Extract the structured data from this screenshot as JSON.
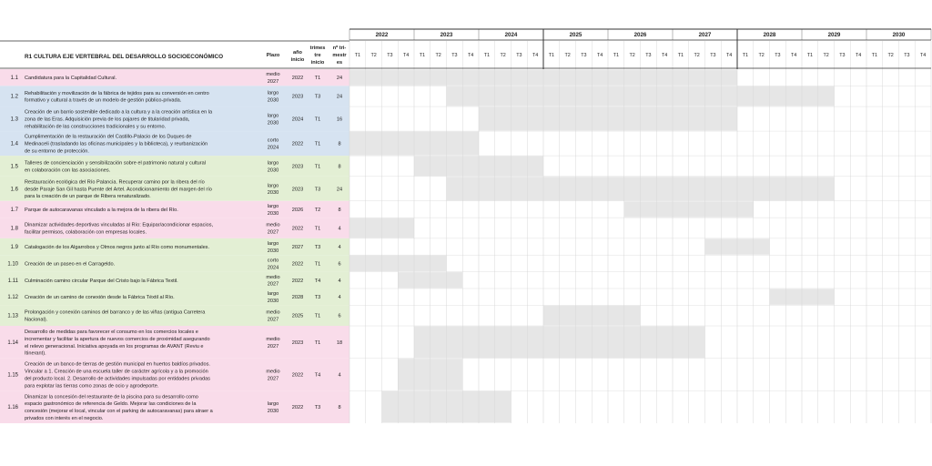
{
  "header": {
    "title": "R1 CULTURA EJE VERTEBRAL DEL DESARROLLO SOCIOECONÓMICO",
    "plazo": "Plazo",
    "anio": [
      "año",
      "inicio"
    ],
    "trimestre": [
      "trimes",
      "tre",
      "inicio"
    ],
    "ntrim": [
      "nº tri-",
      "mestr",
      "es"
    ]
  },
  "years": [
    "2022",
    "2023",
    "2024",
    "2025",
    "2026",
    "2027",
    "2028",
    "2029",
    "2030"
  ],
  "quarters": [
    "T1",
    "T2",
    "T3",
    "T4"
  ],
  "colors": {
    "pink": "#f9dcea",
    "blue": "#d6e3f1",
    "green": "#e3efd4",
    "bar": "#e6e6e6",
    "grid": "#d8d8d8",
    "border": "#333333"
  },
  "rows": [
    {
      "id": "1.1",
      "color": "pink",
      "desc": [
        "Candidatura para la Capitalidad Cultural."
      ],
      "plazo": [
        "medio",
        "2027"
      ],
      "anio": "2022",
      "trim": "T1",
      "n": "24"
    },
    {
      "id": "1.2",
      "color": "blue",
      "desc": [
        "Rehabilitación y movilización de la fábrica de tejidos para su conversión en centro",
        "formativo y cultural a través de un modelo de gestión público-privada."
      ],
      "plazo": [
        "largo",
        "2030"
      ],
      "anio": "2023",
      "trim": "T3",
      "n": "24"
    },
    {
      "id": "1.3",
      "color": "blue",
      "desc": [
        "Creación de un barrio sostenible dedicado a la cultura y a la creación artística en la",
        "zona de las Eras. Adquisición previa de los pajares de titularidad privada,",
        "rehabilitación de las construcciones tradicionales y su entorno."
      ],
      "plazo": [
        "largo",
        "2030"
      ],
      "anio": "2024",
      "trim": "T1",
      "n": "16"
    },
    {
      "id": "1.4",
      "color": "blue",
      "desc": [
        "Cumplimentación de la restauración del Castillo-Palacio de los Duques de",
        "Medinaceli (trasladando las oficinas municipales y la biblioteca), y reurbanización",
        "de su entorno de protección."
      ],
      "plazo": [
        "corto",
        "2024"
      ],
      "anio": "2022",
      "trim": "T1",
      "n": "8"
    },
    {
      "id": "1.5",
      "color": "green",
      "desc": [
        "Talleres de concienciación y sensibilización sobre el patrimonio natural y cultural",
        "en colaboración con las asociaciones."
      ],
      "plazo": [
        "largo",
        "2030"
      ],
      "anio": "2023",
      "trim": "T1",
      "n": "8"
    },
    {
      "id": "1.6",
      "color": "green",
      "desc": [
        "Restauración ecológica del Río Palancia. Recuperar camino por la ribera del río",
        "desde Paraje San Gil hasta Puente del Artel. Acondicionamiento del margen del río",
        "para la creación de un parque de Ribera renaturalizado."
      ],
      "plazo": [
        "largo",
        "2030"
      ],
      "anio": "2023",
      "trim": "T3",
      "n": "24"
    },
    {
      "id": "1.7",
      "color": "pink",
      "desc": [
        "Parque de autocaravanas vinculado a la mejora de la ribera del Río."
      ],
      "plazo": [
        "largo",
        "2030"
      ],
      "anio": "2026",
      "trim": "T2",
      "n": "8"
    },
    {
      "id": "1.8",
      "color": "pink",
      "desc": [
        "Dinamizar actividades deportivas vinculadas al Río: Equipar/acondicionar espacios,",
        "facilitar permisos, colaboración con empresas locales."
      ],
      "plazo": [
        "medio",
        "2027"
      ],
      "anio": "2022",
      "trim": "T1",
      "n": "4"
    },
    {
      "id": "1.9",
      "color": "green",
      "desc": [
        "Catalogación de los Algarrobos y Olmos negros junto al Río como monumentales."
      ],
      "plazo": [
        "largo",
        "2030"
      ],
      "anio": "2027",
      "trim": "T3",
      "n": "4"
    },
    {
      "id": "1.10",
      "color": "green",
      "desc": [
        "Creación de un paseo en el Carrageldo."
      ],
      "plazo": [
        "corto",
        "2024"
      ],
      "anio": "2022",
      "trim": "T1",
      "n": "6"
    },
    {
      "id": "1.11",
      "color": "green",
      "desc": [
        "Culminación camino circular Parque del Cristo bajo la Fábrica Textil."
      ],
      "plazo": [
        "medio",
        "2027"
      ],
      "anio": "2022",
      "trim": "T4",
      "n": "4"
    },
    {
      "id": "1.12",
      "color": "green",
      "desc": [
        "Creación de un camino de conexión desde la Fábrica Téxtil al Río."
      ],
      "plazo": [
        "largo",
        "2030"
      ],
      "anio": "2028",
      "trim": "T3",
      "n": "4"
    },
    {
      "id": "1.13",
      "color": "green",
      "desc": [
        "Prolongación y conexión caminos del barranco y de las viñas (antigua Carretera",
        "Nacional)."
      ],
      "plazo": [
        "medio",
        "2027"
      ],
      "anio": "2025",
      "trim": "T1",
      "n": "6"
    },
    {
      "id": "1.14",
      "color": "pink",
      "desc": [
        "Desarrollo de medidas para favorecer el consumo en los comercios locales e",
        "incrementar y facilitar la apertura de nuevos comercios de proximidad asegurando",
        "el relevo generacional. Iniciativa apoyada en los programas de AVANT (Reviu e",
        "Itinerant)."
      ],
      "plazo": [
        "medio",
        "2027"
      ],
      "anio": "2023",
      "trim": "T1",
      "n": "18"
    },
    {
      "id": "1.15",
      "color": "pink",
      "desc": [
        "Creación de un banco de tierras de gestión municipal en huertos baldíos privados.",
        "Vincular a 1. Creación de una escuela taller de carácter agrícola y a la promoción",
        "del producto local. 2. Desarrollo de actividades impulsadas por entidades privadas",
        "para explotar las tierras como zonas de ocio y agrodeporte."
      ],
      "plazo": [
        "medio",
        "2027"
      ],
      "anio": "2022",
      "trim": "T4",
      "n": "4"
    },
    {
      "id": "1.16",
      "color": "pink",
      "desc": [
        "Dinamizar la concesión del restaurante de la piscina para su desarrollo como",
        "espacio gastronómico de referencia de Geldo. Mejorar las condiciones de la",
        "concesión (mejorar el local, vincular con el parking de autocaravanas) para atraer a",
        "privados con interés en el negocio."
      ],
      "plazo": [
        "largo",
        "2030"
      ],
      "anio": "2022",
      "trim": "T3",
      "n": "8"
    }
  ]
}
